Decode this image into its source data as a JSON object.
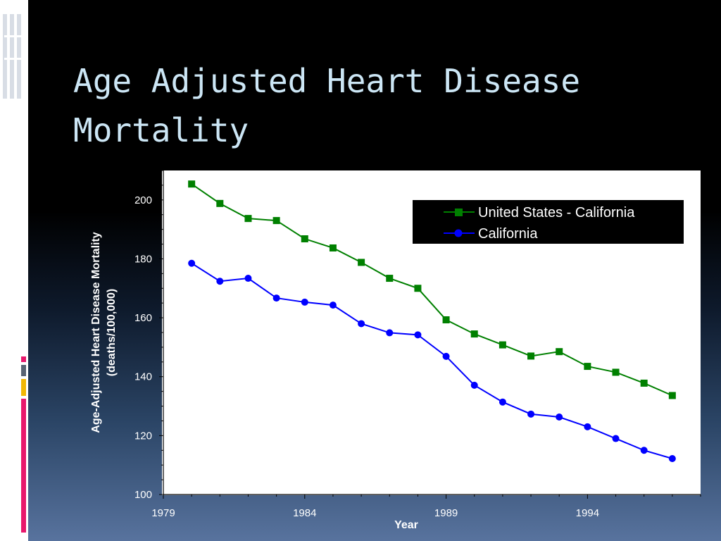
{
  "slide": {
    "title": "Age Adjusted Heart Disease Mortality"
  },
  "colors": {
    "series_us": "#008000",
    "series_ca": "#0000ff",
    "title_text": "#cce6f5",
    "deco_pink": "#e8186c",
    "deco_gray": "#5a6473",
    "deco_gold": "#f2b705"
  },
  "chart_data": {
    "type": "line",
    "title": "",
    "xlabel": "Year",
    "ylabel": "Age-Adjusted Heart Disease Mortality (deaths/100,000)",
    "xlim": [
      1979,
      1998
    ],
    "ylim": [
      100,
      210
    ],
    "x_ticks": [
      1979,
      1984,
      1989,
      1994
    ],
    "y_ticks": [
      100,
      120,
      140,
      160,
      180,
      200
    ],
    "legend_position": "top-right",
    "grid": false,
    "x": [
      1980,
      1981,
      1982,
      1983,
      1984,
      1985,
      1986,
      1987,
      1988,
      1989,
      1990,
      1991,
      1992,
      1993,
      1994,
      1995,
      1996,
      1997
    ],
    "series": [
      {
        "name": "United States - California",
        "marker": "square",
        "color": "#008000",
        "values": [
          205.4,
          198.8,
          193.7,
          193.0,
          186.8,
          183.7,
          178.8,
          173.4,
          170.0,
          159.3,
          154.5,
          150.8,
          147.0,
          148.5,
          143.5,
          141.5,
          137.8,
          133.6
        ]
      },
      {
        "name": "California",
        "marker": "circle",
        "color": "#0000ff",
        "values": [
          178.5,
          172.4,
          173.4,
          166.7,
          165.3,
          164.3,
          158.0,
          154.9,
          154.2,
          146.9,
          137.1,
          131.4,
          127.3,
          126.3,
          123.0,
          119.0,
          115.0,
          112.2
        ]
      }
    ]
  }
}
